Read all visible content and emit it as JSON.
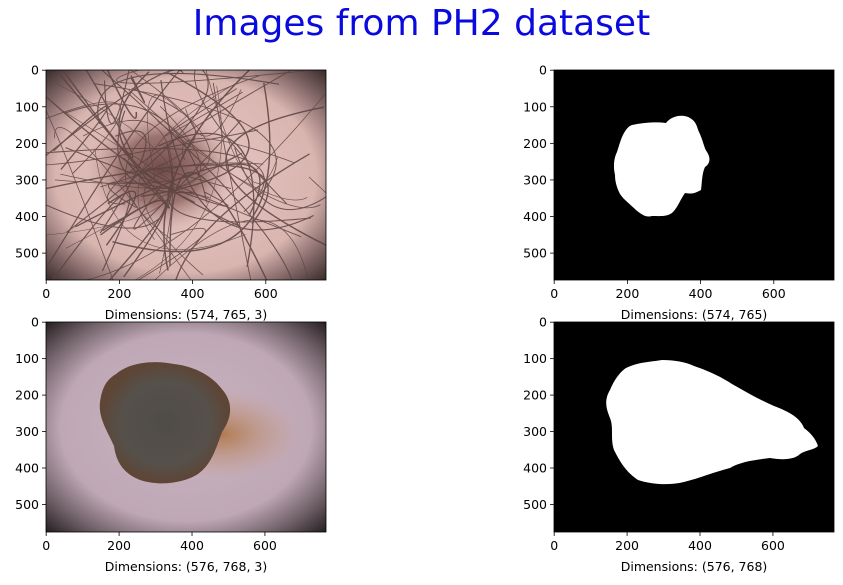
{
  "title": "Images from PH2 dataset",
  "colors": {
    "title": "#0a0adf",
    "mask_bg": "#000000",
    "mask_fg": "#ffffff"
  },
  "panels": [
    {
      "kind": "dermoscopy-image-hairy-lesion",
      "x_ticks": [
        "0",
        "200",
        "400",
        "600"
      ],
      "y_ticks": [
        "0",
        "100",
        "200",
        "300",
        "400",
        "500"
      ],
      "xlabel": "Dimensions: (574, 765, 3)",
      "width": 765,
      "height": 574
    },
    {
      "kind": "segmentation-mask",
      "x_ticks": [
        "0",
        "200",
        "400",
        "600"
      ],
      "y_ticks": [
        "0",
        "100",
        "200",
        "300",
        "400",
        "500"
      ],
      "xlabel": "Dimensions: (574, 765)",
      "width": 765,
      "height": 574
    },
    {
      "kind": "dermoscopy-image-dark-lesion",
      "x_ticks": [
        "0",
        "200",
        "400",
        "600"
      ],
      "y_ticks": [
        "0",
        "100",
        "200",
        "300",
        "400",
        "500"
      ],
      "xlabel": "Dimensions: (576, 768, 3)",
      "width": 768,
      "height": 576
    },
    {
      "kind": "segmentation-mask",
      "x_ticks": [
        "0",
        "200",
        "400",
        "600"
      ],
      "y_ticks": [
        "0",
        "100",
        "200",
        "300",
        "400",
        "500"
      ],
      "xlabel": "Dimensions: (576, 768)",
      "width": 768,
      "height": 576
    }
  ]
}
